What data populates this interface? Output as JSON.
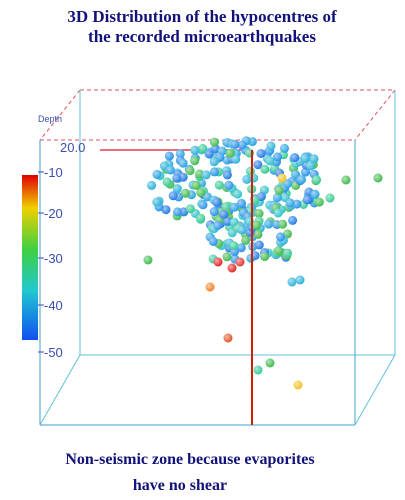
{
  "header": {
    "title_lines": [
      "3D Distribution of the hypocentres  of",
      "the recorded microearthquakes"
    ]
  },
  "plot": {
    "axis_label": "Depth",
    "corner_label": "20.0",
    "colorbar_labels": [
      "-10",
      "-20",
      "-30",
      "-40",
      "-50"
    ]
  },
  "caption": {
    "lines": [
      "Non-seismic zone because evaporites",
      "have no shear"
    ]
  }
}
